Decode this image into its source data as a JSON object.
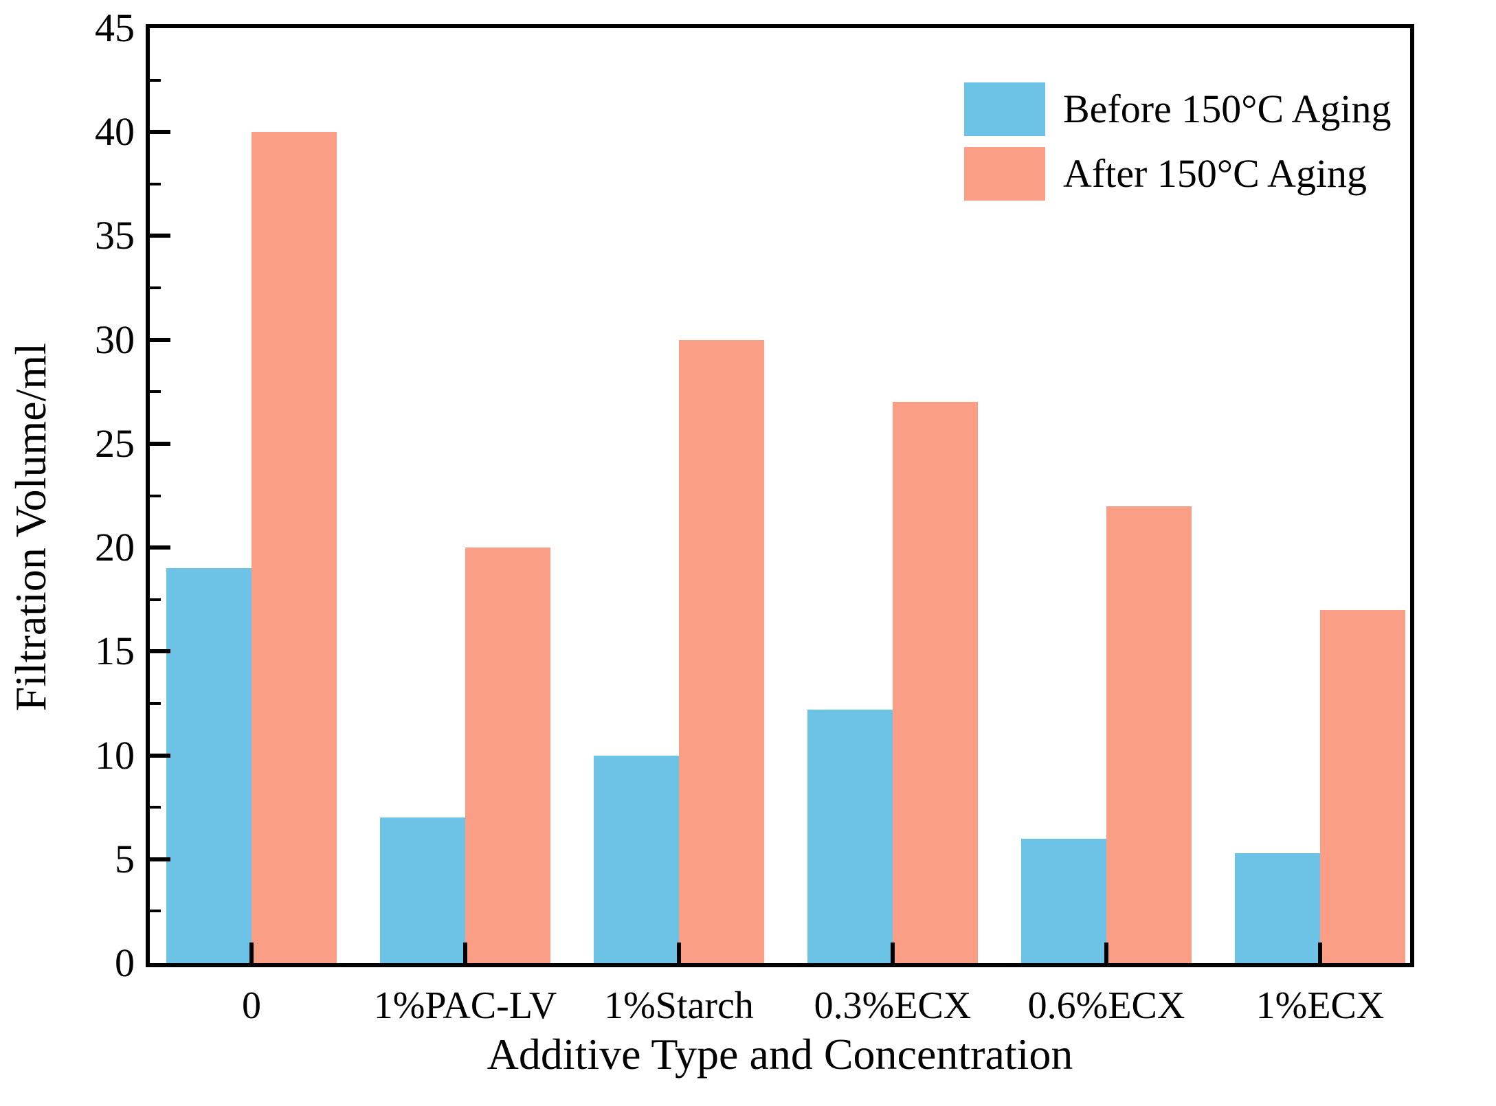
{
  "figure": {
    "background": "#ffffff",
    "axis_color": "#000000"
  },
  "chart_data": {
    "type": "bar",
    "title": "",
    "xlabel": "Additive Type and Concentration",
    "ylabel": "Filtration Volume/ml",
    "categories": [
      "0",
      "1%PAC-LV",
      "1%Starch",
      "0.3%ECX",
      "0.6%ECX",
      "1%ECX"
    ],
    "series": [
      {
        "name": "Before 150°C Aging",
        "color": "#6CC3E5",
        "values": [
          19,
          7,
          10,
          12.2,
          6,
          5.3
        ]
      },
      {
        "name": "After 150°C Aging",
        "color": "#FA9E86",
        "values": [
          40,
          20,
          30,
          27,
          22,
          17
        ]
      }
    ],
    "ylim": [
      0,
      45
    ],
    "yticks": [
      0,
      5,
      10,
      15,
      20,
      25,
      30,
      35,
      40,
      45
    ],
    "ytick_minor_step": 2.5,
    "legend_position": "top-right",
    "grid": false,
    "bar_edge": "none"
  }
}
